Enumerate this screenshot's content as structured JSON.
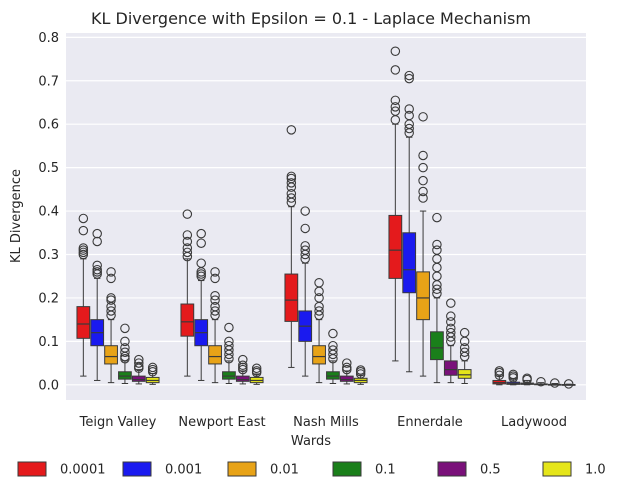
{
  "chart_data": {
    "type": "box",
    "title": "KL Divergence with Epsilon = 0.1 - Laplace Mechanism",
    "xlabel": "Wards",
    "ylabel": "KL Divergence",
    "ylim": [
      -0.035,
      0.81
    ],
    "yticks": [
      "0.0",
      "0.1",
      "0.2",
      "0.3",
      "0.4",
      "0.5",
      "0.6",
      "0.7",
      "0.8"
    ],
    "ytick_values": [
      0.0,
      0.1,
      0.2,
      0.3,
      0.4,
      0.5,
      0.6,
      0.7,
      0.8
    ],
    "grid": true,
    "legend_position": "bottom",
    "categories": [
      "Teign Valley",
      "Newport East",
      "Nash Mills",
      "Ennerdale",
      "Ladywood"
    ],
    "series": [
      {
        "name": "0.0001",
        "color": "#e41a1c",
        "boxes": [
          {
            "whislo": 0.02,
            "q1": 0.107,
            "med": 0.14,
            "q3": 0.18,
            "whishi": 0.29,
            "fliers": [
              0.3,
              0.305,
              0.31,
              0.315,
              0.355,
              0.383
            ]
          },
          {
            "whislo": 0.02,
            "q1": 0.112,
            "med": 0.145,
            "q3": 0.186,
            "whishi": 0.29,
            "fliers": [
              0.295,
              0.305,
              0.315,
              0.33,
              0.345,
              0.393
            ]
          },
          {
            "whislo": 0.04,
            "q1": 0.146,
            "med": 0.195,
            "q3": 0.255,
            "whishi": 0.41,
            "fliers": [
              0.42,
              0.43,
              0.44,
              0.455,
              0.465,
              0.475,
              0.48,
              0.587
            ]
          },
          {
            "whislo": 0.055,
            "q1": 0.245,
            "med": 0.31,
            "q3": 0.39,
            "whishi": 0.6,
            "fliers": [
              0.61,
              0.63,
              0.64,
              0.655,
              0.725,
              0.768
            ]
          },
          {
            "whislo": 0.0,
            "q1": 0.002,
            "med": 0.005,
            "q3": 0.01,
            "whishi": 0.02,
            "fliers": [
              0.022,
              0.028,
              0.032
            ]
          }
        ]
      },
      {
        "name": "0.001",
        "color": "#1a1aef",
        "boxes": [
          {
            "whislo": 0.01,
            "q1": 0.09,
            "med": 0.12,
            "q3": 0.15,
            "whishi": 0.245,
            "fliers": [
              0.255,
              0.26,
              0.265,
              0.275,
              0.33,
              0.348
            ]
          },
          {
            "whislo": 0.01,
            "q1": 0.09,
            "med": 0.12,
            "q3": 0.15,
            "whishi": 0.24,
            "fliers": [
              0.25,
              0.255,
              0.26,
              0.28,
              0.326,
              0.348
            ]
          },
          {
            "whislo": 0.02,
            "q1": 0.1,
            "med": 0.135,
            "q3": 0.17,
            "whishi": 0.28,
            "fliers": [
              0.29,
              0.3,
              0.31,
              0.32,
              0.36,
              0.4
            ]
          },
          {
            "whislo": 0.03,
            "q1": 0.212,
            "med": 0.265,
            "q3": 0.35,
            "whishi": 0.57,
            "fliers": [
              0.58,
              0.59,
              0.6,
              0.62,
              0.635,
              0.705,
              0.712
            ]
          },
          {
            "whislo": 0.0,
            "q1": 0.001,
            "med": 0.003,
            "q3": 0.006,
            "whishi": 0.014,
            "fliers": [
              0.016,
              0.02,
              0.024
            ]
          }
        ]
      },
      {
        "name": "0.01",
        "color": "#e8a317",
        "boxes": [
          {
            "whislo": 0.005,
            "q1": 0.048,
            "med": 0.065,
            "q3": 0.09,
            "whishi": 0.15,
            "fliers": [
              0.16,
              0.17,
              0.18,
              0.195,
              0.2,
              0.245,
              0.26
            ]
          },
          {
            "whislo": 0.005,
            "q1": 0.048,
            "med": 0.065,
            "q3": 0.09,
            "whishi": 0.15,
            "fliers": [
              0.16,
              0.17,
              0.18,
              0.195,
              0.205,
              0.245,
              0.26
            ]
          },
          {
            "whislo": 0.005,
            "q1": 0.048,
            "med": 0.065,
            "q3": 0.09,
            "whishi": 0.15,
            "fliers": [
              0.16,
              0.17,
              0.18,
              0.2,
              0.215,
              0.235
            ]
          },
          {
            "whislo": 0.02,
            "q1": 0.15,
            "med": 0.2,
            "q3": 0.26,
            "whishi": 0.4,
            "fliers": [
              0.43,
              0.445,
              0.47,
              0.5,
              0.528,
              0.617
            ]
          },
          {
            "whislo": 0.0,
            "q1": 0.001,
            "med": 0.002,
            "q3": 0.004,
            "whishi": 0.01,
            "fliers": [
              0.012,
              0.015
            ]
          }
        ]
      },
      {
        "name": "0.1",
        "color": "#1a7f1a",
        "boxes": [
          {
            "whislo": 0.003,
            "q1": 0.013,
            "med": 0.02,
            "q3": 0.03,
            "whishi": 0.055,
            "fliers": [
              0.06,
              0.065,
              0.075,
              0.085,
              0.1,
              0.13
            ]
          },
          {
            "whislo": 0.003,
            "q1": 0.013,
            "med": 0.02,
            "q3": 0.03,
            "whishi": 0.055,
            "fliers": [
              0.06,
              0.07,
              0.08,
              0.09,
              0.1,
              0.132
            ]
          },
          {
            "whislo": 0.003,
            "q1": 0.013,
            "med": 0.02,
            "q3": 0.03,
            "whishi": 0.055,
            "fliers": [
              0.06,
              0.07,
              0.08,
              0.09,
              0.118
            ]
          },
          {
            "whislo": 0.005,
            "q1": 0.058,
            "med": 0.085,
            "q3": 0.122,
            "whishi": 0.2,
            "fliers": [
              0.21,
              0.22,
              0.23,
              0.25,
              0.27,
              0.29,
              0.31,
              0.323,
              0.385
            ]
          },
          {
            "whislo": 0.0,
            "q1": 0.0005,
            "med": 0.001,
            "q3": 0.002,
            "whishi": 0.005,
            "fliers": [
              0.007
            ]
          }
        ]
      },
      {
        "name": "0.5",
        "color": "#7a117a",
        "boxes": [
          {
            "whislo": 0.002,
            "q1": 0.008,
            "med": 0.012,
            "q3": 0.02,
            "whishi": 0.035,
            "fliers": [
              0.038,
              0.042,
              0.05,
              0.058
            ]
          },
          {
            "whislo": 0.002,
            "q1": 0.008,
            "med": 0.012,
            "q3": 0.02,
            "whishi": 0.032,
            "fliers": [
              0.035,
              0.04,
              0.045,
              0.058
            ]
          },
          {
            "whislo": 0.002,
            "q1": 0.008,
            "med": 0.012,
            "q3": 0.02,
            "whishi": 0.032,
            "fliers": [
              0.035,
              0.04,
              0.05
            ]
          },
          {
            "whislo": 0.005,
            "q1": 0.022,
            "med": 0.035,
            "q3": 0.055,
            "whishi": 0.09,
            "fliers": [
              0.1,
              0.11,
              0.12,
              0.13,
              0.145,
              0.158,
              0.188
            ]
          },
          {
            "whislo": 0.0,
            "q1": 0.0002,
            "med": 0.0005,
            "q3": 0.001,
            "whishi": 0.003,
            "fliers": [
              0.004
            ]
          }
        ]
      },
      {
        "name": "1.0",
        "color": "#e5e51a",
        "boxes": [
          {
            "whislo": 0.001,
            "q1": 0.005,
            "med": 0.01,
            "q3": 0.017,
            "whishi": 0.026,
            "fliers": [
              0.03,
              0.035,
              0.04
            ]
          },
          {
            "whislo": 0.001,
            "q1": 0.005,
            "med": 0.01,
            "q3": 0.017,
            "whishi": 0.025,
            "fliers": [
              0.028,
              0.032,
              0.038
            ]
          },
          {
            "whislo": 0.001,
            "q1": 0.005,
            "med": 0.01,
            "q3": 0.015,
            "whishi": 0.022,
            "fliers": [
              0.025,
              0.03,
              0.034
            ]
          },
          {
            "whislo": 0.003,
            "q1": 0.015,
            "med": 0.023,
            "q3": 0.035,
            "whishi": 0.055,
            "fliers": [
              0.065,
              0.075,
              0.085,
              0.1,
              0.12
            ]
          },
          {
            "whislo": 0.0,
            "q1": 0.0001,
            "med": 0.0003,
            "q3": 0.0006,
            "whishi": 0.0015,
            "fliers": [
              0.002
            ]
          }
        ]
      }
    ]
  }
}
